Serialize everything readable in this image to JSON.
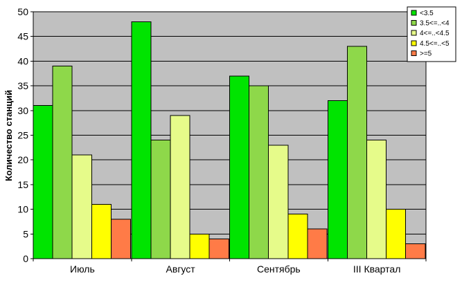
{
  "chart_data": {
    "type": "bar",
    "title": "",
    "xlabel": "",
    "ylabel": "Количество станций",
    "ylim": [
      0,
      50
    ],
    "yticks": [
      0,
      5,
      10,
      15,
      20,
      25,
      30,
      35,
      40,
      45,
      50
    ],
    "categories": [
      "Июль",
      "Август",
      "Сентябрь",
      "III Квартал"
    ],
    "series": [
      {
        "name": "<3.5",
        "color": "#00e400",
        "values": [
          31,
          48,
          37,
          32
        ]
      },
      {
        "name": "3.5<=..<4",
        "color": "#8ed84a",
        "values": [
          39,
          24,
          35,
          43
        ]
      },
      {
        "name": "4<=..<4.5",
        "color": "#e6fb8a",
        "values": [
          21,
          29,
          23,
          24
        ]
      },
      {
        "name": "4.5<=..<5",
        "color": "#ffff00",
        "values": [
          11,
          5,
          9,
          10
        ]
      },
      {
        "name": ">=5",
        "color": "#ff7b47",
        "values": [
          8,
          4,
          6,
          3
        ]
      }
    ],
    "grid": true,
    "legend": "top-right",
    "plot_background": "#c0c0c0"
  }
}
